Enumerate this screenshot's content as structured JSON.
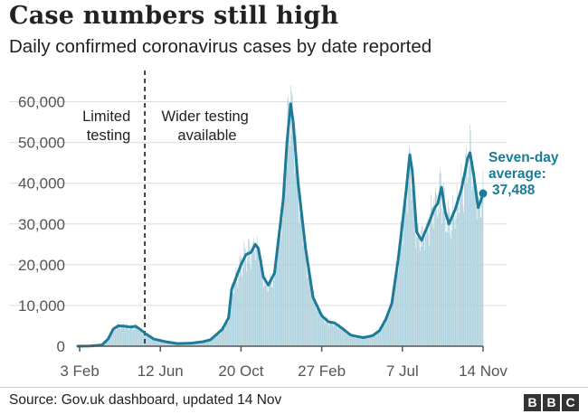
{
  "header": {
    "title": "Case numbers still high",
    "subtitle": "Daily confirmed coronavirus cases by date reported"
  },
  "footer": {
    "source": "Source: Gov.uk dashboard, updated 14 Nov",
    "logo_letters": [
      "B",
      "B",
      "C"
    ]
  },
  "colors": {
    "line": "#1d7b97",
    "bars": "#a9cfdc",
    "grid": "#dddddd",
    "axis": "#555555",
    "divider": "#333333"
  },
  "chart_data": {
    "type": "bar",
    "title": "Case numbers still high",
    "subtitle": "Daily confirmed coronavirus cases by date reported",
    "xlabel": "",
    "ylabel": "",
    "ylim": [
      0,
      65000
    ],
    "yticks": [
      0,
      10000,
      20000,
      30000,
      40000,
      50000,
      60000
    ],
    "ytick_labels": [
      "0",
      "10,000",
      "20,000",
      "30,000",
      "40,000",
      "50,000",
      "60,000"
    ],
    "xticks": [
      {
        "date": "2020-02-03",
        "label": "3 Feb"
      },
      {
        "date": "2020-06-12",
        "label": "12 Jun"
      },
      {
        "date": "2020-10-20",
        "label": "20 Oct"
      },
      {
        "date": "2021-02-27",
        "label": "27 Feb"
      },
      {
        "date": "2021-07-07",
        "label": "7 Jul"
      },
      {
        "date": "2021-11-14",
        "label": "14 Nov"
      }
    ],
    "x_range": [
      "2020-01-31",
      "2021-11-14"
    ],
    "grid": true,
    "series": [
      {
        "name": "Seven-day average",
        "kind": "line",
        "points": [
          [
            "2020-01-31",
            0
          ],
          [
            "2020-02-20",
            50
          ],
          [
            "2020-03-10",
            300
          ],
          [
            "2020-03-20",
            1800
          ],
          [
            "2020-03-28",
            4200
          ],
          [
            "2020-04-05",
            5000
          ],
          [
            "2020-04-15",
            4900
          ],
          [
            "2020-04-25",
            4700
          ],
          [
            "2020-05-03",
            4900
          ],
          [
            "2020-05-10",
            4200
          ],
          [
            "2020-05-20",
            3000
          ],
          [
            "2020-06-01",
            1800
          ],
          [
            "2020-06-20",
            1100
          ],
          [
            "2020-07-10",
            650
          ],
          [
            "2020-08-01",
            750
          ],
          [
            "2020-08-20",
            1100
          ],
          [
            "2020-09-01",
            1600
          ],
          [
            "2020-09-10",
            2800
          ],
          [
            "2020-09-20",
            4200
          ],
          [
            "2020-09-30",
            7000
          ],
          [
            "2020-10-05",
            14000
          ],
          [
            "2020-10-10",
            16000
          ],
          [
            "2020-10-20",
            20000
          ],
          [
            "2020-10-28",
            22500
          ],
          [
            "2020-11-05",
            23000
          ],
          [
            "2020-11-12",
            25000
          ],
          [
            "2020-11-17",
            24000
          ],
          [
            "2020-11-25",
            17000
          ],
          [
            "2020-12-03",
            15000
          ],
          [
            "2020-12-13",
            18000
          ],
          [
            "2020-12-20",
            27000
          ],
          [
            "2020-12-27",
            36000
          ],
          [
            "2021-01-02",
            50000
          ],
          [
            "2021-01-08",
            59500
          ],
          [
            "2021-01-12",
            55000
          ],
          [
            "2021-01-20",
            40000
          ],
          [
            "2021-02-01",
            24000
          ],
          [
            "2021-02-13",
            12000
          ],
          [
            "2021-02-27",
            7500
          ],
          [
            "2021-03-10",
            6000
          ],
          [
            "2021-03-20",
            5700
          ],
          [
            "2021-03-31",
            4500
          ],
          [
            "2021-04-15",
            2700
          ],
          [
            "2021-05-05",
            2100
          ],
          [
            "2021-05-20",
            2600
          ],
          [
            "2021-05-31",
            3800
          ],
          [
            "2021-06-10",
            6500
          ],
          [
            "2021-06-20",
            10500
          ],
          [
            "2021-06-30",
            21000
          ],
          [
            "2021-07-07",
            30000
          ],
          [
            "2021-07-13",
            38000
          ],
          [
            "2021-07-19",
            47000
          ],
          [
            "2021-07-23",
            43000
          ],
          [
            "2021-07-30",
            28000
          ],
          [
            "2021-08-07",
            26000
          ],
          [
            "2021-08-18",
            30000
          ],
          [
            "2021-08-28",
            34000
          ],
          [
            "2021-09-02",
            35000
          ],
          [
            "2021-09-08",
            39000
          ],
          [
            "2021-09-14",
            33000
          ],
          [
            "2021-09-20",
            30000
          ],
          [
            "2021-09-30",
            33500
          ],
          [
            "2021-10-10",
            38500
          ],
          [
            "2021-10-15",
            42000
          ],
          [
            "2021-10-20",
            46000
          ],
          [
            "2021-10-24",
            47500
          ],
          [
            "2021-10-30",
            42000
          ],
          [
            "2021-11-06",
            34000
          ],
          [
            "2021-11-10",
            35500
          ],
          [
            "2021-11-14",
            37488
          ]
        ]
      }
    ],
    "annotations": [
      {
        "text": "Limited testing",
        "lines": [
          "Limited",
          "testing"
        ],
        "side": "left of divider"
      },
      {
        "text": "Wider testing available",
        "lines": [
          "Wider testing",
          "available"
        ],
        "side": "right of divider"
      },
      {
        "text": "Seven-day average: 37,488",
        "lines": [
          "Seven-day",
          "average:",
          "37,488"
        ],
        "value": 37488,
        "date": "2021-11-14"
      }
    ],
    "divider_date": "2020-05-18"
  }
}
